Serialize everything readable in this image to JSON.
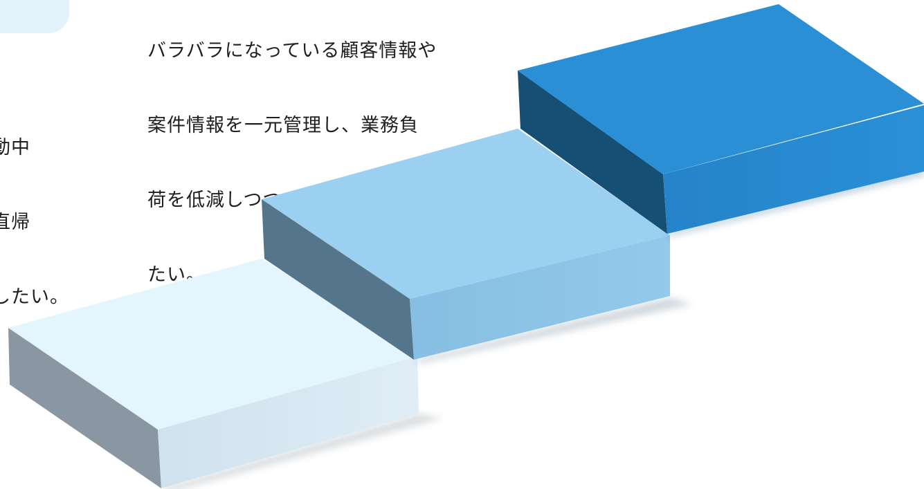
{
  "text_blocks": {
    "left": {
      "lines": [
        "動中",
        "直帰",
        "したい。"
      ]
    },
    "center": {
      "lines": [
        "バラバラになっている顧客情報や",
        "案件情報を一元管理し、業務負",
        "荷を低減しつつ、受注率を向上し",
        "たい。"
      ]
    }
  },
  "colors": {
    "step_1_top": "#e3f5fd",
    "step_1_side": "#8a97a3",
    "step_2_top": "#9bd0f1",
    "step_2_side": "#55758b",
    "step_3_top": "#2a8fd4",
    "step_3_side": "#164f74",
    "bubble": "#e3f1fb"
  }
}
